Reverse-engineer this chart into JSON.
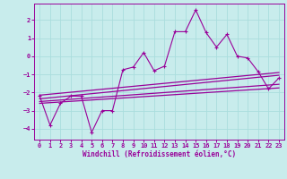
{
  "xlabel": "Windchill (Refroidissement éolien,°C)",
  "bg_color": "#c8ecec",
  "line_color": "#990099",
  "grid_color": "#aadddd",
  "spine_color": "#990099",
  "xlim": [
    -0.5,
    23.5
  ],
  "ylim": [
    -4.6,
    2.9
  ],
  "xticks": [
    0,
    1,
    2,
    3,
    4,
    5,
    6,
    7,
    8,
    9,
    10,
    11,
    12,
    13,
    14,
    15,
    16,
    17,
    18,
    19,
    20,
    21,
    22,
    23
  ],
  "yticks": [
    -4,
    -3,
    -2,
    -1,
    0,
    1,
    2
  ],
  "scatter_x": [
    0,
    1,
    2,
    3,
    4,
    5,
    6,
    7,
    8,
    9,
    10,
    11,
    12,
    13,
    14,
    15,
    16,
    17,
    18,
    19,
    20,
    21,
    22,
    23
  ],
  "scatter_y": [
    -2.2,
    -3.8,
    -2.6,
    -2.2,
    -2.2,
    -4.2,
    -3.0,
    -3.0,
    -0.75,
    -0.6,
    0.2,
    -0.8,
    -0.55,
    1.35,
    1.35,
    2.55,
    1.3,
    0.5,
    1.2,
    0.0,
    -0.1,
    -0.85,
    -1.8,
    -1.2
  ],
  "reg_lines": [
    {
      "x": [
        0,
        23
      ],
      "y": [
        -2.15,
        -0.9
      ]
    },
    {
      "x": [
        0,
        23
      ],
      "y": [
        -2.35,
        -1.05
      ]
    },
    {
      "x": [
        0,
        23
      ],
      "y": [
        -2.5,
        -1.55
      ]
    },
    {
      "x": [
        0,
        23
      ],
      "y": [
        -2.6,
        -1.75
      ]
    }
  ],
  "tick_fontsize": 5.0,
  "xlabel_fontsize": 5.5
}
